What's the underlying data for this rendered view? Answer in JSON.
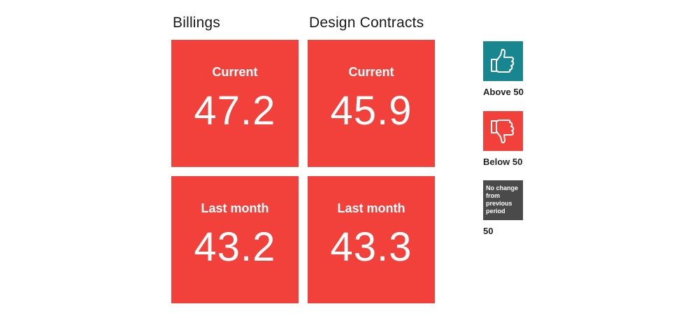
{
  "columns": [
    {
      "title": "Billings",
      "current_label": "Current",
      "current_value": "47.2",
      "last_label": "Last month",
      "last_value": "43.2"
    },
    {
      "title": "Design Contracts",
      "current_label": "Current",
      "current_value": "45.9",
      "last_label": "Last month",
      "last_value": "43.3"
    }
  ],
  "legend": {
    "above": {
      "caption": "Above 50",
      "icon": "thumbs-up-icon",
      "color": "#18868e"
    },
    "below": {
      "caption": "Below 50",
      "icon": "thumbs-down-icon",
      "color": "#f2403a"
    },
    "nochange": {
      "note": "No change from previous period",
      "caption": "50",
      "color": "#4a4a4a"
    }
  },
  "colors": {
    "tile": "#f2403a",
    "tile_text": "#ffffff"
  }
}
